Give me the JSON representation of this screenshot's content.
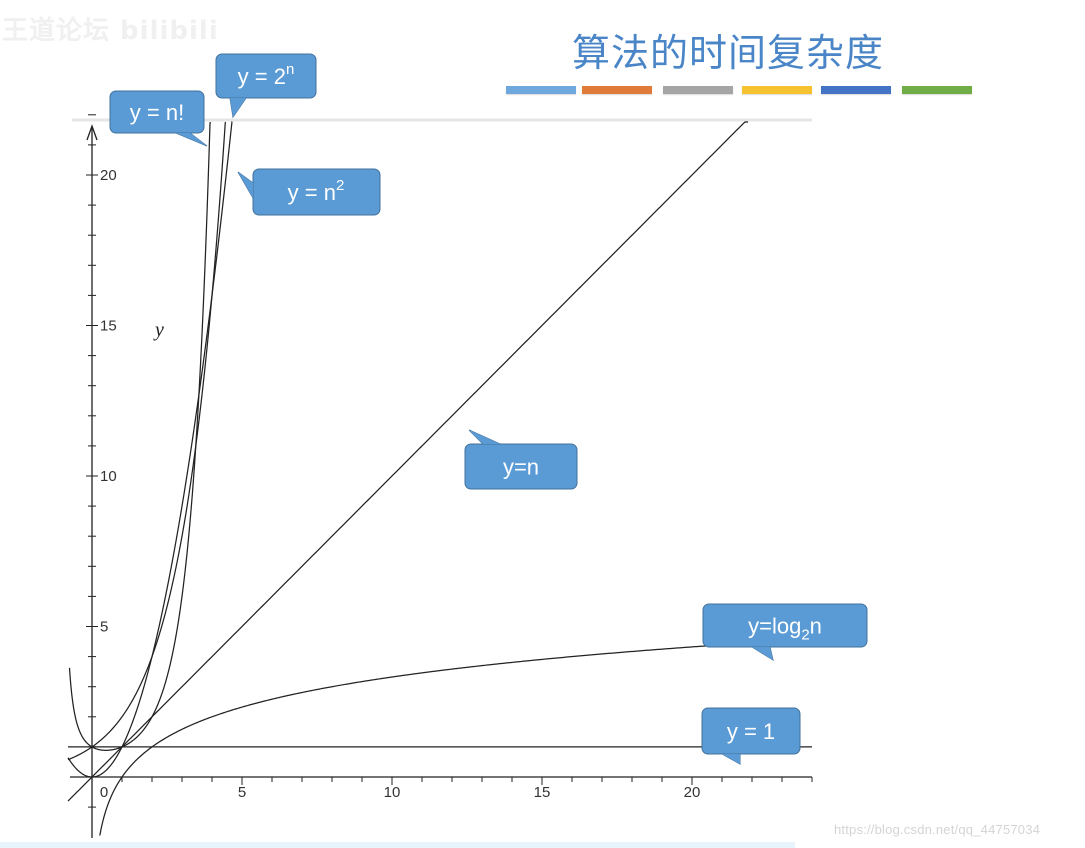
{
  "header": {
    "title": "算法的时间复杂度",
    "watermark_top": "王道论坛 bilibili",
    "watermark_bottom": "https://blog.csdn.net/qq_44757034"
  },
  "theme": {
    "title_color": "#4a86c7",
    "callout_fill": "#5b9bd5",
    "callout_stroke": "#41719c",
    "curve_color": "#222222",
    "color_bars": [
      "#6fa8dc",
      "#e07b39",
      "#a5a5a5",
      "#f5c330",
      "#4472c4",
      "#70ad47"
    ]
  },
  "chart_data": {
    "type": "line",
    "title": "",
    "xlabel": "",
    "ylabel": "y",
    "xlim": [
      -0.8,
      24
    ],
    "ylim": [
      -2,
      22
    ],
    "x_ticks": [
      0,
      5,
      10,
      15,
      20
    ],
    "x_tick_labels": [
      "0",
      "5",
      "10",
      "15",
      "20"
    ],
    "y_ticks": [
      5,
      10,
      15,
      20
    ],
    "y_tick_labels": [
      "5",
      "10",
      "15",
      "20"
    ],
    "grid": false,
    "series": [
      {
        "name": "y = n!",
        "function": "factorial"
      },
      {
        "name": "y = 2^n",
        "function": "exp2"
      },
      {
        "name": "y = n^2",
        "function": "square"
      },
      {
        "name": "y=n",
        "function": "linear"
      },
      {
        "name": "y=log2n",
        "function": "log2"
      },
      {
        "name": "y = 1",
        "function": "constant"
      }
    ],
    "callouts": [
      {
        "id": "factorial",
        "base": "y = n!",
        "sup": "",
        "sub": "",
        "tail": ""
      },
      {
        "id": "exp2",
        "base": "y = 2",
        "sup": "n",
        "sub": "",
        "tail": ""
      },
      {
        "id": "square",
        "base": "y = n",
        "sup": "2",
        "sub": "",
        "tail": ""
      },
      {
        "id": "linear",
        "base": "y=n",
        "sup": "",
        "sub": "",
        "tail": ""
      },
      {
        "id": "log2",
        "base": "y=log",
        "sup": "",
        "sub": "2",
        "tail": "n"
      },
      {
        "id": "constant",
        "base": "y = 1",
        "sup": "",
        "sub": "",
        "tail": ""
      }
    ]
  }
}
